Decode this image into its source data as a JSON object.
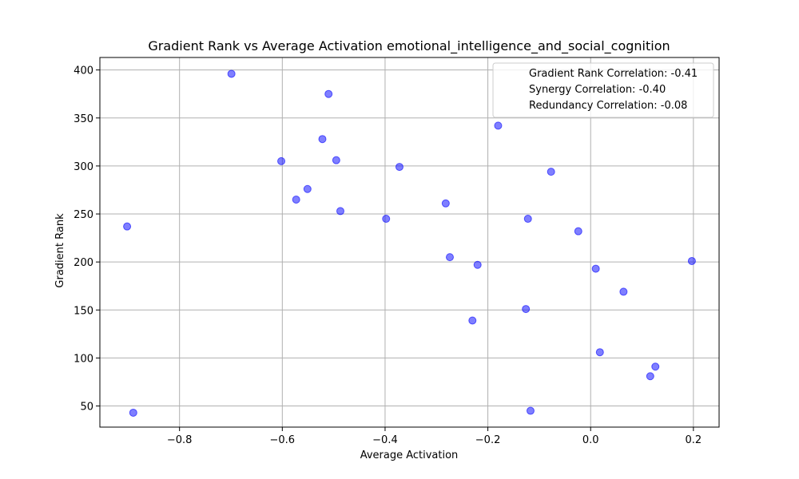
{
  "chart_data": {
    "type": "scatter",
    "title": "Gradient Rank vs Average Activation emotional_intelligence_and_social_cognition",
    "xlabel": "Average Activation",
    "ylabel": "Gradient Rank",
    "xlim": [
      -0.955,
      0.25
    ],
    "ylim": [
      28,
      413
    ],
    "xticks": [
      -0.8,
      -0.6,
      -0.4,
      -0.2,
      0.0,
      0.2
    ],
    "xtick_labels": [
      "−0.8",
      "−0.6",
      "−0.4",
      "−0.2",
      "0.0",
      "0.2"
    ],
    "yticks": [
      50,
      100,
      150,
      200,
      250,
      300,
      350,
      400
    ],
    "ytick_labels": [
      "50",
      "100",
      "150",
      "200",
      "250",
      "300",
      "350",
      "400"
    ],
    "grid": true,
    "point_color": "#0000ff",
    "point_opacity": 0.5,
    "legend_position": "upper-right",
    "legend": [
      "Gradient Rank Correlation: -0.41",
      "Synergy Correlation: -0.40",
      "Redundancy Correlation: -0.08"
    ],
    "points": [
      {
        "x": -0.699,
        "y": 396
      },
      {
        "x": -0.51,
        "y": 375
      },
      {
        "x": -0.18,
        "y": 342
      },
      {
        "x": -0.522,
        "y": 328
      },
      {
        "x": -0.602,
        "y": 305
      },
      {
        "x": -0.495,
        "y": 306
      },
      {
        "x": -0.372,
        "y": 299
      },
      {
        "x": -0.077,
        "y": 294
      },
      {
        "x": -0.551,
        "y": 276
      },
      {
        "x": -0.573,
        "y": 265
      },
      {
        "x": -0.282,
        "y": 261
      },
      {
        "x": -0.487,
        "y": 253
      },
      {
        "x": -0.398,
        "y": 245
      },
      {
        "x": -0.122,
        "y": 245
      },
      {
        "x": -0.902,
        "y": 237
      },
      {
        "x": -0.024,
        "y": 232
      },
      {
        "x": -0.274,
        "y": 205
      },
      {
        "x": 0.197,
        "y": 201
      },
      {
        "x": -0.22,
        "y": 197
      },
      {
        "x": 0.01,
        "y": 193
      },
      {
        "x": 0.064,
        "y": 169
      },
      {
        "x": -0.126,
        "y": 151
      },
      {
        "x": -0.23,
        "y": 139
      },
      {
        "x": 0.018,
        "y": 106
      },
      {
        "x": 0.126,
        "y": 91
      },
      {
        "x": 0.116,
        "y": 81
      },
      {
        "x": -0.89,
        "y": 43
      },
      {
        "x": -0.117,
        "y": 45
      }
    ]
  }
}
